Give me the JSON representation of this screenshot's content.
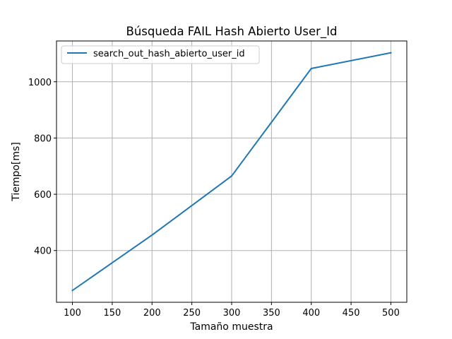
{
  "chart_data": {
    "type": "line",
    "title": "Búsqueda FAIL Hash Abierto User_Id",
    "xlabel": "Tamaño muestra",
    "ylabel": "Tiempo[ms]",
    "x": [
      100,
      200,
      300,
      400,
      500
    ],
    "series": [
      {
        "name": "search_out_hash_abierto_user_id",
        "values": [
          258,
          455,
          665,
          1047,
          1103
        ],
        "color": "#1f77b4"
      }
    ],
    "xlim": [
      80,
      520
    ],
    "ylim": [
      216,
      1145
    ],
    "xticks": [
      100,
      150,
      200,
      250,
      300,
      350,
      400,
      450,
      500
    ],
    "yticks": [
      400,
      600,
      800,
      1000
    ],
    "grid": true,
    "legend_position": "top-left"
  }
}
